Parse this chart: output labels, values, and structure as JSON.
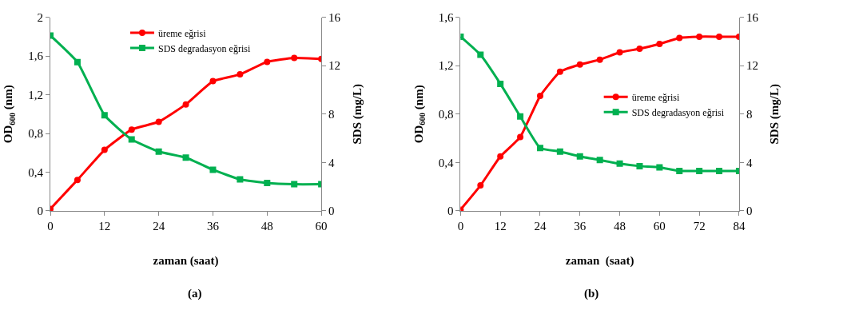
{
  "chart_data": [
    {
      "type": "line",
      "xlabel": "zaman (saat)",
      "ylabel": "OD$_{600}$ (nm)",
      "y2label": "SDS (mg/L)",
      "annotations": [
        "(a)"
      ],
      "x": [
        0,
        6,
        12,
        18,
        24,
        30,
        36,
        42,
        48,
        54,
        60
      ],
      "xlim": [
        0,
        60
      ],
      "xticks": [
        0,
        12,
        24,
        36,
        48,
        60
      ],
      "ylim": [
        0,
        2
      ],
      "yticks": [
        0,
        {
          "value": 0.4,
          "label": "0,4"
        },
        {
          "value": 0.8,
          "label": "0,8"
        },
        {
          "value": 1.2,
          "label": "1,2"
        },
        {
          "value": 1.6,
          "label": "1,6"
        },
        2
      ],
      "y2lim": [
        0,
        16
      ],
      "y2ticks": [
        0,
        4,
        8,
        12,
        16
      ],
      "legend": "top",
      "series": [
        {
          "name": "üreme eğrisi",
          "color": "#ff0000",
          "marker": "circle",
          "values": [
            0.02,
            0.32,
            0.63,
            0.84,
            0.92,
            1.1,
            1.34,
            1.41,
            1.54,
            1.58,
            1.57
          ]
        },
        {
          "name": "SDS degradasyon eğrisi",
          "color": "#00b050",
          "marker": "square",
          "axis": "y2",
          "values": [
            14.5,
            12.3,
            7.9,
            5.9,
            4.9,
            4.4,
            3.4,
            2.6,
            2.3,
            2.2,
            2.2
          ]
        }
      ]
    },
    {
      "type": "line",
      "xlabel": "zaman  (saat)",
      "ylabel": "OD$_{600}$ (nm)",
      "y2label": "SDS (mg/L)",
      "annotations": [
        "(b)"
      ],
      "x": [
        0,
        6,
        12,
        18,
        24,
        30,
        36,
        42,
        48,
        54,
        60,
        66,
        72,
        78,
        84
      ],
      "xlim": [
        0,
        84
      ],
      "xticks": [
        0,
        12,
        24,
        36,
        48,
        60,
        72,
        84
      ],
      "ylim": [
        0,
        1.6
      ],
      "yticks": [
        0,
        {
          "value": 0.4,
          "label": "0,4"
        },
        {
          "value": 0.8,
          "label": "0,8"
        },
        {
          "value": 1.2,
          "label": "1,2"
        },
        {
          "value": 1.6,
          "label": "1,6"
        }
      ],
      "y2lim": [
        0,
        16
      ],
      "y2ticks": [
        0,
        4,
        8,
        12,
        16
      ],
      "legend": "right",
      "series": [
        {
          "name": "üreme eğrisi",
          "color": "#ff0000",
          "marker": "circle",
          "values": [
            0.01,
            0.21,
            0.45,
            0.61,
            0.95,
            1.15,
            1.21,
            1.25,
            1.31,
            1.34,
            1.38,
            1.43,
            1.44,
            1.44,
            1.44
          ]
        },
        {
          "name": "SDS degradasyon eğrisi",
          "color": "#00b050",
          "marker": "square",
          "axis": "y2",
          "values": [
            14.4,
            12.9,
            10.5,
            7.8,
            5.2,
            4.9,
            4.5,
            4.2,
            3.9,
            3.7,
            3.6,
            3.3,
            3.3,
            3.3,
            3.3
          ]
        }
      ]
    }
  ]
}
